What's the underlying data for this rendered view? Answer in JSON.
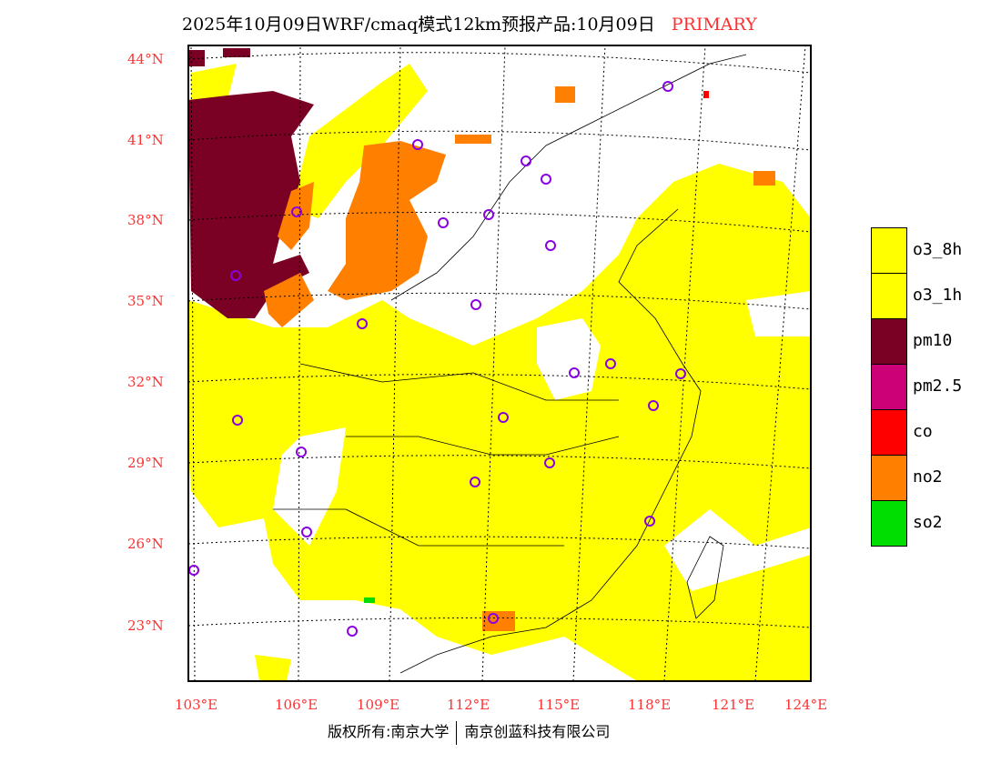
{
  "title": {
    "main": "2025年10月09日WRF/cmaq模式12km预报产品:10月09日",
    "tag": "PRIMARY"
  },
  "lat_labels": [
    "44°N",
    "41°N",
    "38°N",
    "35°N",
    "32°N",
    "29°N",
    "26°N",
    "23°N"
  ],
  "lon_labels": [
    "103°E",
    "106°E",
    "109°E",
    "112°E",
    "115°E",
    "118°E",
    "121°E",
    "124°E"
  ],
  "legend": [
    {
      "label": "o3_8h",
      "color": "#ffff00"
    },
    {
      "label": "o3_1h",
      "color": "#ffff00"
    },
    {
      "label": "pm10",
      "color": "#7a0024"
    },
    {
      "label": "pm2.5",
      "color": "#cc0077"
    },
    {
      "label": "co",
      "color": "#ff0000"
    },
    {
      "label": "no2",
      "color": "#ff8000"
    },
    {
      "label": "so2",
      "color": "#00dd00"
    }
  ],
  "footer": {
    "left": "版权所有:南京大学",
    "right": "南京创蓝科技有限公司"
  }
}
